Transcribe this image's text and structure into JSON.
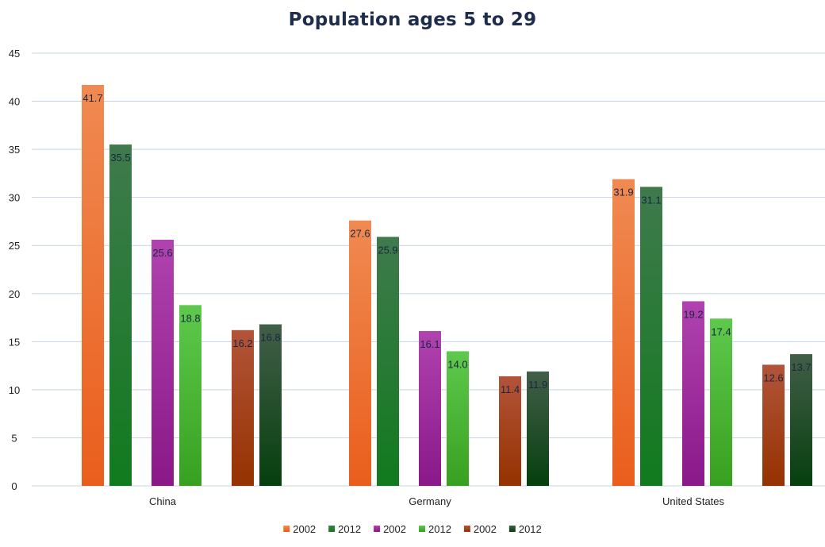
{
  "chart_data": {
    "type": "bar",
    "title": "Population ages 5 to 29",
    "xlabel": "",
    "ylabel": "",
    "ylim": [
      0,
      45
    ],
    "yticks": [
      0,
      5,
      10,
      15,
      20,
      25,
      30,
      35,
      40,
      45
    ],
    "grid": true,
    "legend_position": "bottom",
    "categories": [
      "China",
      "Germany",
      "United States"
    ],
    "series": [
      {
        "name": "2002",
        "values": [
          41.7,
          27.6,
          31.9
        ],
        "labels": [
          "41.7",
          "27.6",
          "31.9"
        ],
        "color_top": "#f08a52",
        "color_bottom": "#ea5e1c"
      },
      {
        "name": "2012",
        "values": [
          35.5,
          25.9,
          31.1
        ],
        "labels": [
          "35.5",
          "25.9",
          "31.1"
        ],
        "color_top": "#3f7a4d",
        "color_bottom": "#117a1e"
      },
      {
        "name": "2002",
        "values": [
          25.6,
          16.1,
          19.2
        ],
        "labels": [
          "25.6",
          "16.1",
          "19.2"
        ],
        "color_top": "#b043b0",
        "color_bottom": "#8a1888"
      },
      {
        "name": "2012",
        "values": [
          18.8,
          14.0,
          17.4
        ],
        "labels": [
          "18.8",
          "14.0",
          "17.4"
        ],
        "color_top": "#5ec94c",
        "color_bottom": "#38a020"
      },
      {
        "name": "2002",
        "values": [
          16.2,
          11.4,
          12.6
        ],
        "labels": [
          "16.2",
          "11.4",
          "12.6"
        ],
        "color_top": "#b2543a",
        "color_bottom": "#953200"
      },
      {
        "name": "2012",
        "values": [
          16.8,
          11.9,
          13.7
        ],
        "labels": [
          "16.8",
          "11.9",
          "13.7"
        ],
        "color_top": "#425e48",
        "color_bottom": "#063f0e"
      }
    ]
  }
}
